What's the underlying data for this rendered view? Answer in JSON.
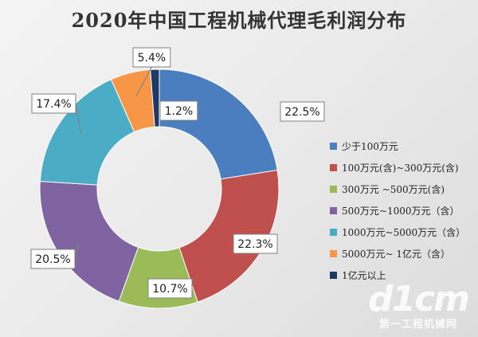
{
  "chart_data": {
    "type": "pie",
    "donut": true,
    "title": "2020年中国工程机械代理毛利润分布",
    "categories": [
      "少于100万元",
      "100万元(含)~300万元(含)",
      "300万元 ~500万元(含)",
      "500万元~1000万元（含）",
      "1000万元~5000万元（含）",
      "5000万元~ 1亿元（含）",
      "1亿元以上"
    ],
    "values": [
      22.5,
      22.3,
      10.7,
      20.5,
      17.4,
      5.4,
      1.2
    ],
    "labels": [
      "22.5%",
      "22.3%",
      "10.7%",
      "20.5%",
      "17.4%",
      "5.4%",
      "1.2%"
    ],
    "colors": [
      "#4a7ebf",
      "#c0504d",
      "#9bbb59",
      "#8064a2",
      "#4bacc6",
      "#f79646",
      "#1f3864"
    ],
    "legend": "right"
  },
  "watermark": {
    "logo": "d1cm",
    "text": "第一工程机械网"
  }
}
